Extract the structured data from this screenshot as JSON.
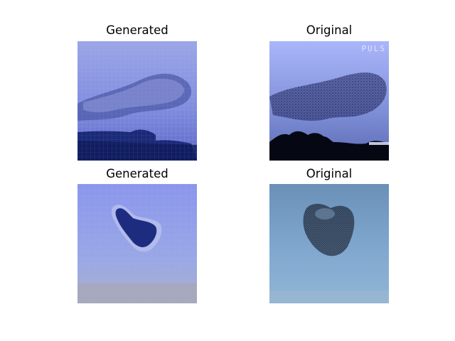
{
  "panels": [
    {
      "title": "Generated",
      "image": "generated-starling-murmuration-sky-1"
    },
    {
      "title": "Original",
      "image": "original-starling-murmuration-photo-1",
      "watermark": "PULS"
    },
    {
      "title": "Generated",
      "image": "generated-starling-murmuration-sky-2"
    },
    {
      "title": "Original",
      "image": "original-starling-murmuration-photo-2"
    }
  ]
}
